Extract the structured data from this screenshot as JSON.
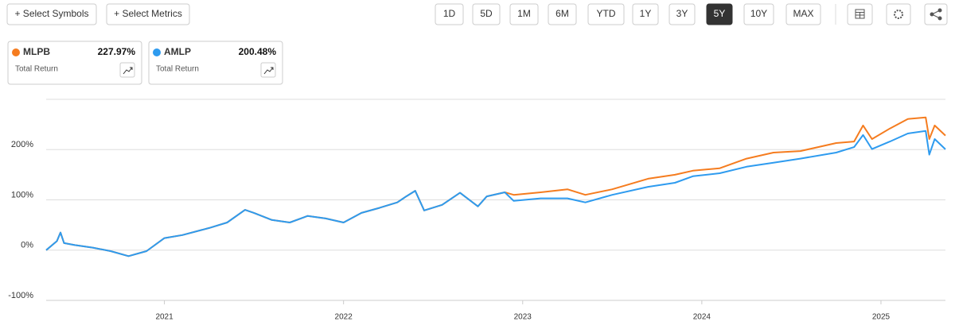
{
  "toolbar": {
    "add_symbols": "+ Select Symbols",
    "add_metrics": "+ Select Metrics",
    "ranges": [
      "1D",
      "5D",
      "1M",
      "6M",
      "YTD",
      "1Y",
      "3Y",
      "5Y",
      "10Y",
      "MAX"
    ],
    "active_range": 7
  },
  "summary": [
    {
      "value_label": "227.97%",
      "metric": "Total Return"
    },
    {
      "value_label": "200.48%",
      "metric": "Total Return"
    }
  ],
  "chart_data": {
    "type": "line",
    "grid": true,
    "x": [
      2020.34,
      2020.4,
      2020.42,
      2020.44,
      2020.5,
      2020.6,
      2020.7,
      2020.8,
      2020.9,
      2021.0,
      2021.1,
      2021.25,
      2021.35,
      2021.45,
      2021.5,
      2021.6,
      2021.7,
      2021.8,
      2021.9,
      2022.0,
      2022.1,
      2022.2,
      2022.3,
      2022.35,
      2022.4,
      2022.45,
      2022.55,
      2022.65,
      2022.75,
      2022.8,
      2022.9,
      2022.95,
      2023.1,
      2023.25,
      2023.35,
      2023.5,
      2023.7,
      2023.85,
      2023.95,
      2024.1,
      2024.25,
      2024.4,
      2024.55,
      2024.75,
      2024.85,
      2024.9,
      2024.95,
      2025.05,
      2025.15,
      2025.25,
      2025.27,
      2025.3,
      2025.36
    ],
    "series": [
      {
        "name": "MLPB",
        "color": "#f57c1f",
        "values": [
          0,
          18,
          35,
          14,
          10,
          5,
          -2,
          -12,
          -2,
          24,
          30,
          44,
          55,
          80,
          74,
          60,
          55,
          68,
          63,
          55,
          74,
          84,
          95,
          107,
          118,
          79,
          90,
          114,
          87,
          107,
          115,
          110,
          115,
          121,
          110,
          121,
          142,
          150,
          158,
          163,
          182,
          194,
          197,
          213,
          216,
          248,
          221,
          242,
          261,
          264,
          221,
          248,
          227.97
        ]
      },
      {
        "name": "AMLP",
        "color": "#2e9bef",
        "values": [
          0,
          18,
          35,
          14,
          10,
          5,
          -2,
          -12,
          -2,
          24,
          30,
          44,
          55,
          80,
          74,
          60,
          55,
          68,
          63,
          55,
          74,
          84,
          95,
          107,
          118,
          79,
          90,
          114,
          87,
          107,
          115,
          98,
          103,
          103,
          95,
          110,
          126,
          134,
          147,
          153,
          166,
          174,
          182,
          194,
          205,
          229,
          201,
          216,
          232,
          237,
          190,
          221,
          200.48
        ]
      }
    ],
    "xlim": [
      2020.34,
      2025.36
    ],
    "xticks": [
      2021,
      2022,
      2023,
      2024,
      2025
    ],
    "ylim": [
      -100,
      300
    ],
    "yticks": [
      {
        "value": -100,
        "label": "-100%"
      },
      {
        "value": 0,
        "label": "0%"
      },
      {
        "value": 100,
        "label": "100%"
      },
      {
        "value": 200,
        "label": "200%"
      }
    ]
  }
}
